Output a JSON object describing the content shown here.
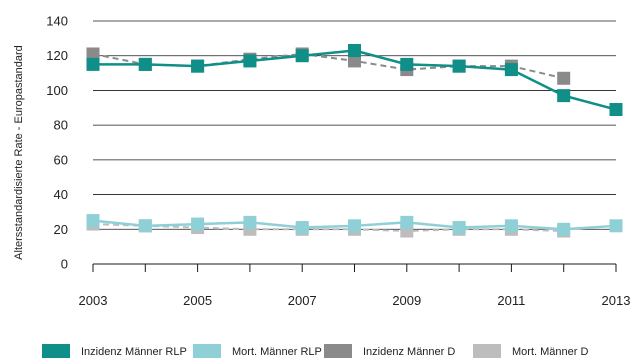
{
  "chart_data": {
    "type": "line",
    "title": "",
    "xlabel": "",
    "ylabel": "Altersstandardisierte Rate - Europastandard",
    "ylim": [
      0,
      140
    ],
    "yticks": [
      0,
      20,
      40,
      60,
      80,
      100,
      120,
      140
    ],
    "xlim": [
      2003,
      2013
    ],
    "xtick_labels": [
      2003,
      2005,
      2007,
      2009,
      2011,
      2013
    ],
    "grid": "horizontal",
    "legend_position": "bottom",
    "x": [
      2003,
      2004,
      2005,
      2006,
      2007,
      2008,
      2009,
      2010,
      2011,
      2012,
      2013
    ],
    "series": [
      {
        "name": "Inzidenz Männer D",
        "color": "#8a8a8a",
        "dashed": true,
        "values": [
          121,
          115,
          114,
          118,
          121,
          117,
          112,
          114,
          114,
          107,
          null
        ]
      },
      {
        "name": "Mort. Männer D",
        "color": "#bdbdbd",
        "dashed": true,
        "values": [
          23,
          22,
          21,
          20,
          20,
          20,
          19,
          20,
          20,
          19,
          null
        ]
      },
      {
        "name": "Inzidenz Männer RLP",
        "color": "#0f8f87",
        "dashed": false,
        "values": [
          115,
          115,
          114,
          117,
          120,
          123,
          115,
          114,
          112,
          97,
          89
        ]
      },
      {
        "name": "Mort. Männer RLP",
        "color": "#8fd0d6",
        "dashed": false,
        "values": [
          25,
          22,
          23,
          24,
          21,
          22,
          24,
          21,
          22,
          20,
          22
        ]
      }
    ],
    "legend_order": [
      "Inzidenz Männer RLP",
      "Mort. Männer RLP",
      "Inzidenz Männer D",
      "Mort. Männer D"
    ]
  }
}
